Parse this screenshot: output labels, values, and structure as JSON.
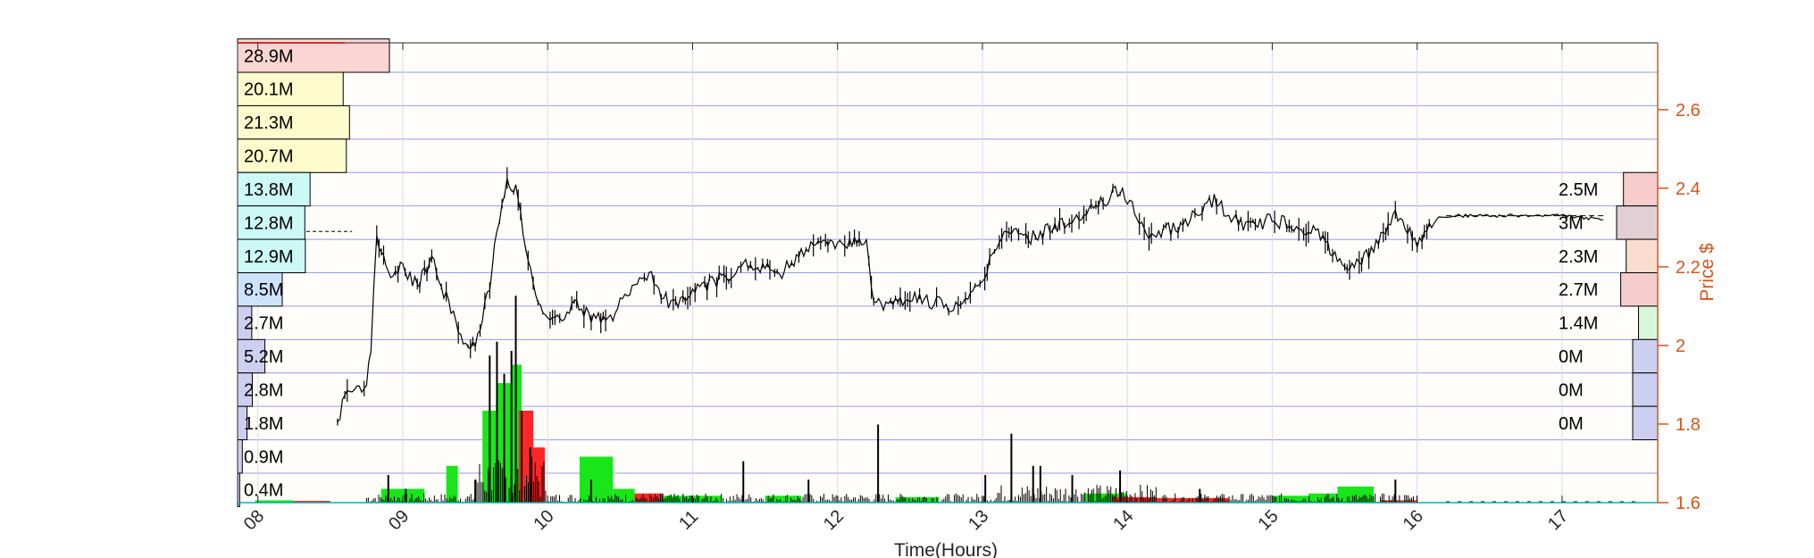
{
  "chart_data": {
    "type": "candlestick",
    "xlabel": "Time(Hours)",
    "ylabel": "Price $",
    "x_ticks": [
      "08",
      "09",
      "10",
      "11",
      "12",
      "13",
      "14",
      "15",
      "16",
      "17"
    ],
    "x_range": [
      7.86,
      17.66
    ],
    "y_ticks": [
      1.6,
      1.8,
      2.0,
      2.2,
      2.4,
      2.6
    ],
    "y_tick_labels": [
      "1.6",
      "1.8",
      "2",
      "2.2",
      "2.4",
      "2.6"
    ],
    "ylim": [
      1.6,
      2.77
    ],
    "grid": true,
    "price_path": [
      [
        8.55,
        1.8
      ],
      [
        8.6,
        1.88
      ],
      [
        8.75,
        1.89
      ],
      [
        8.78,
        2.0
      ],
      [
        8.82,
        2.27
      ],
      [
        8.9,
        2.18
      ],
      [
        9.0,
        2.2
      ],
      [
        9.1,
        2.15
      ],
      [
        9.2,
        2.22
      ],
      [
        9.3,
        2.12
      ],
      [
        9.4,
        2.02
      ],
      [
        9.5,
        2.0
      ],
      [
        9.6,
        2.15
      ],
      [
        9.65,
        2.3
      ],
      [
        9.72,
        2.42
      ],
      [
        9.78,
        2.4
      ],
      [
        9.83,
        2.3
      ],
      [
        9.9,
        2.15
      ],
      [
        10.0,
        2.07
      ],
      [
        10.1,
        2.08
      ],
      [
        10.2,
        2.1
      ],
      [
        10.3,
        2.07
      ],
      [
        10.45,
        2.08
      ],
      [
        10.55,
        2.13
      ],
      [
        10.7,
        2.18
      ],
      [
        10.85,
        2.1
      ],
      [
        11.0,
        2.14
      ],
      [
        11.2,
        2.17
      ],
      [
        11.4,
        2.21
      ],
      [
        11.6,
        2.18
      ],
      [
        11.8,
        2.25
      ],
      [
        12.0,
        2.26
      ],
      [
        12.2,
        2.27
      ],
      [
        12.25,
        2.1
      ],
      [
        12.5,
        2.12
      ],
      [
        12.8,
        2.1
      ],
      [
        13.0,
        2.17
      ],
      [
        13.15,
        2.3
      ],
      [
        13.3,
        2.27
      ],
      [
        13.5,
        2.3
      ],
      [
        13.7,
        2.33
      ],
      [
        13.95,
        2.4
      ],
      [
        14.15,
        2.28
      ],
      [
        14.4,
        2.31
      ],
      [
        14.6,
        2.37
      ],
      [
        14.8,
        2.3
      ],
      [
        15.0,
        2.32
      ],
      [
        15.3,
        2.29
      ],
      [
        15.5,
        2.2
      ],
      [
        15.7,
        2.24
      ],
      [
        15.85,
        2.34
      ],
      [
        16.0,
        2.26
      ],
      [
        16.15,
        2.33
      ],
      [
        16.5,
        2.33
      ],
      [
        17.0,
        2.33
      ],
      [
        17.3,
        2.32
      ]
    ],
    "volume_profile_left": [
      {
        "price_bin": [
          2.695,
          2.78
        ],
        "volume": "28.9M",
        "value": 28.9,
        "color": "#f9d5d3"
      },
      {
        "price_bin": [
          2.61,
          2.695
        ],
        "volume": "20.1M",
        "value": 20.1,
        "color": "#fdfbcc"
      },
      {
        "price_bin": [
          2.525,
          2.61
        ],
        "volume": "21.3M",
        "value": 21.3,
        "color": "#fdfbcc"
      },
      {
        "price_bin": [
          2.44,
          2.525
        ],
        "volume": "20.7M",
        "value": 20.7,
        "color": "#fdfbcc"
      },
      {
        "price_bin": [
          2.355,
          2.44
        ],
        "volume": "13.8M",
        "value": 13.8,
        "color": "#ccf8f6"
      },
      {
        "price_bin": [
          2.27,
          2.355
        ],
        "volume": "12.8M",
        "value": 12.8,
        "color": "#ccf8f6"
      },
      {
        "price_bin": [
          2.185,
          2.27
        ],
        "volume": "12.9M",
        "value": 12.9,
        "color": "#ccf8f6"
      },
      {
        "price_bin": [
          2.1,
          2.185
        ],
        "volume": "8.5M",
        "value": 8.5,
        "color": "#cde3fb"
      },
      {
        "price_bin": [
          2.015,
          2.1
        ],
        "volume": "2.7M",
        "value": 2.7,
        "color": "#cdcff0"
      },
      {
        "price_bin": [
          1.93,
          2.015
        ],
        "volume": "5.2M",
        "value": 5.2,
        "color": "#cdcff0"
      },
      {
        "price_bin": [
          1.845,
          1.93
        ],
        "volume": "2.8M",
        "value": 2.8,
        "color": "#cdcff0"
      },
      {
        "price_bin": [
          1.76,
          1.845
        ],
        "volume": "1.8M",
        "value": 1.8,
        "color": "#cdcff0"
      },
      {
        "price_bin": [
          1.675,
          1.76
        ],
        "volume": "0.9M",
        "value": 0.9,
        "color": "#cdcff0"
      },
      {
        "price_bin": [
          1.59,
          1.675
        ],
        "volume": "0.4M",
        "value": 0.4,
        "color": "#cdcff0"
      }
    ],
    "volume_profile_right": [
      {
        "price_bin": [
          2.355,
          2.44
        ],
        "volume": "2.5M",
        "value": 2.5,
        "color": "#f6cccc"
      },
      {
        "price_bin": [
          2.27,
          2.355
        ],
        "volume": "3M",
        "value": 3.0,
        "color": "#e1cfd5"
      },
      {
        "price_bin": [
          2.185,
          2.27
        ],
        "volume": "2.3M",
        "value": 2.3,
        "color": "#fbddd0"
      },
      {
        "price_bin": [
          2.1,
          2.185
        ],
        "volume": "2.7M",
        "value": 2.7,
        "color": "#f6cccc"
      },
      {
        "price_bin": [
          2.015,
          2.1
        ],
        "volume": "1.4M",
        "value": 1.4,
        "color": "#d8f6dc"
      },
      {
        "price_bin": [
          1.93,
          2.015
        ],
        "volume": "0M",
        "value": 0.0,
        "color": "#cdcff0"
      },
      {
        "price_bin": [
          1.845,
          1.93
        ],
        "volume": "0M",
        "value": 0.0,
        "color": "#cdcff0"
      },
      {
        "price_bin": [
          1.76,
          1.845
        ],
        "volume": "0M",
        "value": 0.0,
        "color": "#cdcff0"
      }
    ],
    "volume_blocks": [
      {
        "x": [
          7.98,
          8.25
        ],
        "level": 0.005,
        "color": "#19e619"
      },
      {
        "x": [
          8.25,
          8.5
        ],
        "level": 0.003,
        "color": "#ff2626"
      },
      {
        "x": [
          8.85,
          9.15
        ],
        "level": 0.03,
        "color": "#19e619"
      },
      {
        "x": [
          9.3,
          9.38
        ],
        "level": 0.08,
        "color": "#19e619"
      },
      {
        "x": [
          9.55,
          9.65
        ],
        "level": 0.2,
        "color": "#19e619"
      },
      {
        "x": [
          9.65,
          9.75
        ],
        "level": 0.26,
        "color": "#19e619"
      },
      {
        "x": [
          9.75,
          9.82
        ],
        "level": 0.3,
        "color": "#19e619"
      },
      {
        "x": [
          9.8,
          9.9
        ],
        "level": 0.2,
        "color": "#ff2626"
      },
      {
        "x": [
          9.88,
          9.98
        ],
        "level": 0.12,
        "color": "#ff2626"
      },
      {
        "x": [
          10.22,
          10.45
        ],
        "level": 0.1,
        "color": "#19e619"
      },
      {
        "x": [
          10.45,
          10.6
        ],
        "level": 0.03,
        "color": "#19e619"
      },
      {
        "x": [
          10.6,
          10.8
        ],
        "level": 0.02,
        "color": "#ff2626"
      },
      {
        "x": [
          10.8,
          11.2
        ],
        "level": 0.015,
        "color": "#19e619"
      },
      {
        "x": [
          11.5,
          11.75
        ],
        "level": 0.015,
        "color": "#19e619"
      },
      {
        "x": [
          12.4,
          12.7
        ],
        "level": 0.012,
        "color": "#19e619"
      },
      {
        "x": [
          13.7,
          14.0
        ],
        "level": 0.02,
        "color": "#19e619"
      },
      {
        "x": [
          13.9,
          14.2
        ],
        "level": 0.012,
        "color": "#ff2626"
      },
      {
        "x": [
          14.2,
          14.7
        ],
        "level": 0.01,
        "color": "#ff2626"
      },
      {
        "x": [
          15.0,
          15.25
        ],
        "level": 0.015,
        "color": "#19e619"
      },
      {
        "x": [
          15.25,
          15.45
        ],
        "level": 0.02,
        "color": "#19e619"
      },
      {
        "x": [
          15.45,
          15.7
        ],
        "level": 0.035,
        "color": "#19e619"
      },
      {
        "x": [
          15.75,
          16.0
        ],
        "level": 0.005,
        "color": "#ff2626"
      }
    ],
    "volume_spikes": [
      [
        8.9,
        0.06
      ],
      [
        9.02,
        0.03
      ],
      [
        9.5,
        0.05
      ],
      [
        9.6,
        0.32
      ],
      [
        9.65,
        0.35
      ],
      [
        9.7,
        0.28
      ],
      [
        9.75,
        0.33
      ],
      [
        9.78,
        0.45
      ],
      [
        9.82,
        0.2
      ],
      [
        9.88,
        0.12
      ],
      [
        10.3,
        0.05
      ],
      [
        11.35,
        0.09
      ],
      [
        11.8,
        0.05
      ],
      [
        12.28,
        0.17
      ],
      [
        13.02,
        0.06
      ],
      [
        13.2,
        0.15
      ],
      [
        13.35,
        0.08
      ],
      [
        13.4,
        0.08
      ],
      [
        13.62,
        0.06
      ],
      [
        13.95,
        0.07
      ],
      [
        14.5,
        0.03
      ],
      [
        15.85,
        0.05
      ]
    ],
    "colors": {
      "price_axis": "#D95319",
      "grid": "#6b6fdb",
      "price_line": "#000000",
      "volume_up": "#19e619",
      "volume_down": "#ff2626",
      "baseline": "#00b3b3"
    }
  }
}
